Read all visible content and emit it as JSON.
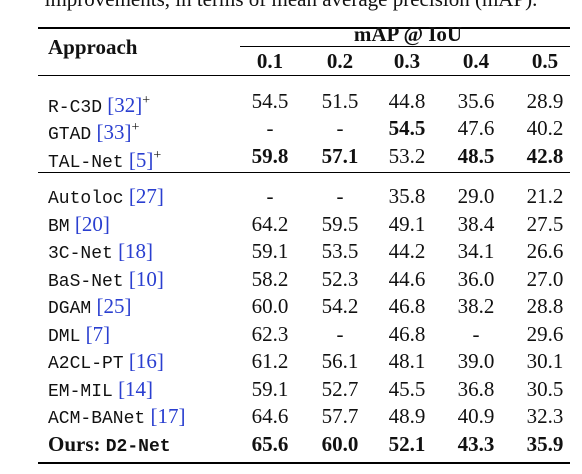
{
  "caption": "improvements, in terms of mean average precision (mAP).",
  "table": {
    "header": {
      "approach": "Approach",
      "group": "mAP @ IoU",
      "thresholds": [
        "0.1",
        "0.2",
        "0.3",
        "0.4",
        "0.5"
      ]
    },
    "groups": [
      [
        {
          "method": "R-C3D",
          "ref": "[32]",
          "sup": "+",
          "values": [
            "54.5",
            "51.5",
            "44.8",
            "35.6",
            "28.9"
          ],
          "bold": [
            false,
            false,
            false,
            false,
            false
          ]
        },
        {
          "method": "GTAD",
          "ref": "[33]",
          "sup": "+",
          "values": [
            "-",
            "-",
            "54.5",
            "47.6",
            "40.2"
          ],
          "bold": [
            false,
            false,
            true,
            false,
            false
          ]
        },
        {
          "method": "TAL-Net",
          "ref": "[5]",
          "sup": "+",
          "values": [
            "59.8",
            "57.1",
            "53.2",
            "48.5",
            "42.8"
          ],
          "bold": [
            true,
            true,
            false,
            true,
            true
          ]
        }
      ],
      [
        {
          "method": "Autoloc",
          "ref": "[27]",
          "values": [
            "-",
            "-",
            "35.8",
            "29.0",
            "21.2"
          ],
          "bold": [
            false,
            false,
            false,
            false,
            false
          ]
        },
        {
          "method": "BM",
          "ref": "[20]",
          "values": [
            "64.2",
            "59.5",
            "49.1",
            "38.4",
            "27.5"
          ],
          "bold": [
            false,
            false,
            false,
            false,
            false
          ]
        },
        {
          "method": "3C-Net",
          "ref": "[18]",
          "values": [
            "59.1",
            "53.5",
            "44.2",
            "34.1",
            "26.6"
          ],
          "bold": [
            false,
            false,
            false,
            false,
            false
          ]
        },
        {
          "method": "BaS-Net",
          "ref": "[10]",
          "values": [
            "58.2",
            "52.3",
            "44.6",
            "36.0",
            "27.0"
          ],
          "bold": [
            false,
            false,
            false,
            false,
            false
          ]
        },
        {
          "method": "DGAM",
          "ref": "[25]",
          "values": [
            "60.0",
            "54.2",
            "46.8",
            "38.2",
            "28.8"
          ],
          "bold": [
            false,
            false,
            false,
            false,
            false
          ]
        },
        {
          "method": "DML",
          "ref": "[7]",
          "values": [
            "62.3",
            "-",
            "46.8",
            "-",
            "29.6"
          ],
          "bold": [
            false,
            false,
            false,
            false,
            false
          ]
        },
        {
          "method": "A2CL-PT",
          "ref": "[16]",
          "values": [
            "61.2",
            "56.1",
            "48.1",
            "39.0",
            "30.1"
          ],
          "bold": [
            false,
            false,
            false,
            false,
            false
          ]
        },
        {
          "method": "EM-MIL",
          "ref": "[14]",
          "values": [
            "59.1",
            "52.7",
            "45.5",
            "36.8",
            "30.5"
          ],
          "bold": [
            false,
            false,
            false,
            false,
            false
          ]
        },
        {
          "method": "ACM-BANet",
          "ref": "[17]",
          "values": [
            "64.6",
            "57.7",
            "48.9",
            "40.9",
            "32.3"
          ],
          "bold": [
            false,
            false,
            false,
            false,
            false
          ]
        },
        {
          "prefix": "Ours:",
          "method": "D2-Net",
          "values": [
            "65.6",
            "60.0",
            "52.1",
            "43.3",
            "35.9"
          ],
          "bold": [
            true,
            true,
            true,
            true,
            true
          ]
        }
      ]
    ]
  }
}
